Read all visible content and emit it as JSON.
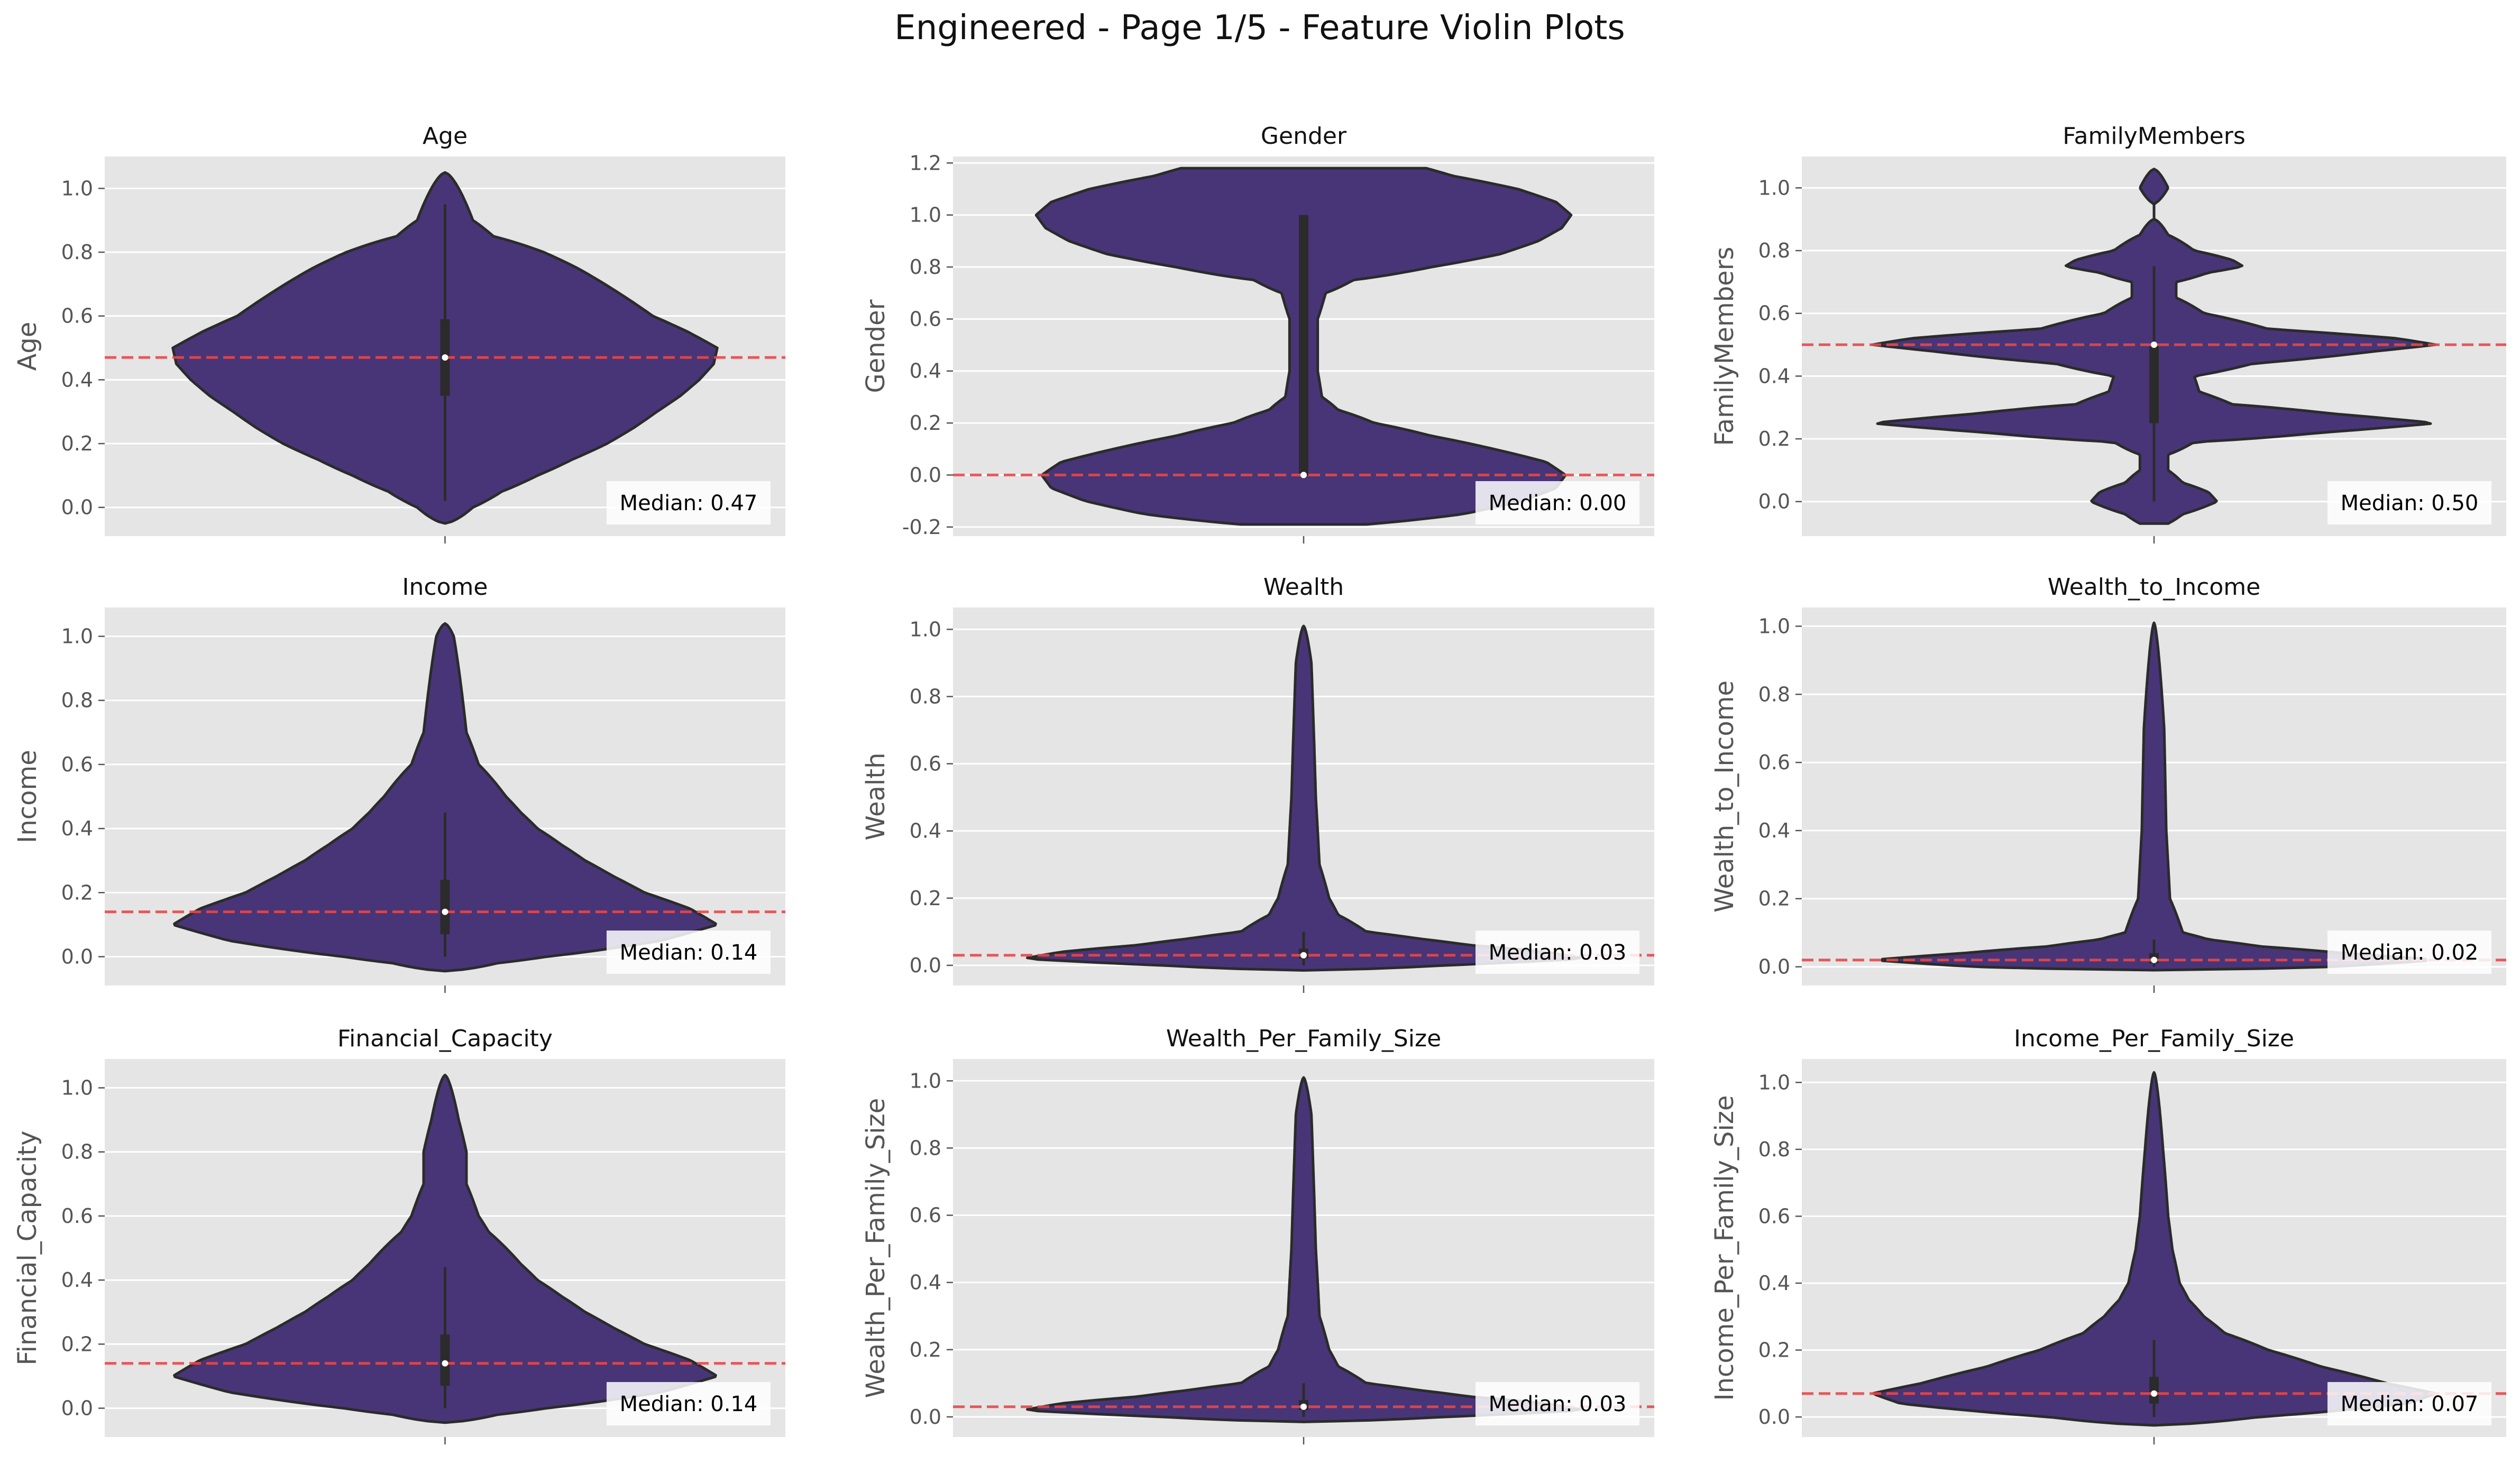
{
  "figure": {
    "title": "Engineered - Page 1/5 - Feature Violin Plots"
  },
  "colors": {
    "panel_bg": "#e5e5e5",
    "grid": "#ffffff",
    "violin_fill": "#483577",
    "violin_edge": "#2b2b2b",
    "median_line": "#e8474a",
    "tick_text": "#555555",
    "label_text": "#555555"
  },
  "chart_data": [
    {
      "type": "violin",
      "title": "Age",
      "ylabel": "Age",
      "ylim": [
        -0.09,
        1.1
      ],
      "yticks": [
        0.0,
        0.2,
        0.4,
        0.6,
        0.8,
        1.0
      ],
      "range": [
        -0.05,
        1.05
      ],
      "median": 0.47,
      "q1": 0.35,
      "q3": 0.59,
      "whisker": [
        0.02,
        0.95
      ],
      "median_label": "Median: 0.47",
      "density": [
        [
          -0.05,
          0.0
        ],
        [
          0.0,
          0.03
        ],
        [
          0.05,
          0.09
        ],
        [
          0.1,
          0.19
        ],
        [
          0.15,
          0.31
        ],
        [
          0.2,
          0.45
        ],
        [
          0.25,
          0.57
        ],
        [
          0.3,
          0.68
        ],
        [
          0.35,
          0.8
        ],
        [
          0.4,
          0.9
        ],
        [
          0.45,
          0.98
        ],
        [
          0.5,
          1.0
        ],
        [
          0.55,
          0.84
        ],
        [
          0.6,
          0.66
        ],
        [
          0.65,
          0.55
        ],
        [
          0.7,
          0.44
        ],
        [
          0.75,
          0.33
        ],
        [
          0.8,
          0.21
        ],
        [
          0.85,
          0.07
        ],
        [
          0.9,
          0.03
        ],
        [
          0.95,
          0.02
        ],
        [
          1.0,
          0.01
        ],
        [
          1.05,
          0.0
        ]
      ]
    },
    {
      "type": "violin",
      "title": "Gender",
      "ylabel": "Gender",
      "ylim": [
        -0.235,
        1.225
      ],
      "yticks": [
        -0.2,
        0.0,
        0.2,
        0.4,
        0.6,
        0.8,
        1.0,
        1.2
      ],
      "range": [
        -0.19,
        1.18
      ],
      "median": 0.0,
      "q1": 0.0,
      "q3": 1.0,
      "whisker": [
        0.0,
        1.0
      ],
      "median_label": "Median: 0.00",
      "density": [
        [
          -0.19,
          0.1
        ],
        [
          -0.15,
          0.42
        ],
        [
          -0.1,
          0.68
        ],
        [
          -0.05,
          0.85
        ],
        [
          0.0,
          0.9
        ],
        [
          0.05,
          0.8
        ],
        [
          0.1,
          0.55
        ],
        [
          0.15,
          0.3
        ],
        [
          0.2,
          0.12
        ],
        [
          0.25,
          0.04
        ],
        [
          0.3,
          0.015
        ],
        [
          0.4,
          0.01
        ],
        [
          0.5,
          0.01
        ],
        [
          0.6,
          0.01
        ],
        [
          0.7,
          0.02
        ],
        [
          0.75,
          0.07
        ],
        [
          0.8,
          0.3
        ],
        [
          0.85,
          0.58
        ],
        [
          0.9,
          0.76
        ],
        [
          0.95,
          0.88
        ],
        [
          1.0,
          0.93
        ],
        [
          1.05,
          0.85
        ],
        [
          1.1,
          0.66
        ],
        [
          1.15,
          0.38
        ],
        [
          1.18,
          0.28
        ]
      ]
    },
    {
      "type": "violin",
      "title": "FamilyMembers",
      "ylabel": "FamilyMembers",
      "ylim": [
        -0.11,
        1.1
      ],
      "yticks": [
        0.0,
        0.2,
        0.4,
        0.6,
        0.8,
        1.0
      ],
      "range": [
        -0.07,
        1.06
      ],
      "median": 0.5,
      "q1": 0.25,
      "q3": 0.5,
      "whisker": [
        0.0,
        0.75
      ],
      "median_label": "Median: 0.50",
      "density": [
        [
          -0.07,
          0.01
        ],
        [
          -0.04,
          0.03
        ],
        [
          0.0,
          0.1
        ],
        [
          0.03,
          0.08
        ],
        [
          0.06,
          0.03
        ],
        [
          0.1,
          0.01
        ],
        [
          0.15,
          0.01
        ],
        [
          0.19,
          0.05
        ],
        [
          0.22,
          0.45
        ],
        [
          0.25,
          1.0
        ],
        [
          0.28,
          0.5
        ],
        [
          0.31,
          0.14
        ],
        [
          0.35,
          0.06
        ],
        [
          0.4,
          0.05
        ],
        [
          0.44,
          0.2
        ],
        [
          0.48,
          0.7
        ],
        [
          0.5,
          1.0
        ],
        [
          0.52,
          0.8
        ],
        [
          0.55,
          0.25
        ],
        [
          0.6,
          0.07
        ],
        [
          0.65,
          0.02
        ],
        [
          0.7,
          0.02
        ],
        [
          0.73,
          0.08
        ],
        [
          0.75,
          0.17
        ],
        [
          0.77,
          0.14
        ],
        [
          0.8,
          0.05
        ],
        [
          0.85,
          0.01
        ],
        [
          0.9,
          0.0
        ],
        [
          0.95,
          0.0
        ],
        [
          1.0,
          0.01
        ],
        [
          1.06,
          0.0
        ]
      ]
    },
    {
      "type": "violin",
      "title": "Income",
      "ylabel": "Income",
      "ylim": [
        -0.09,
        1.09
      ],
      "yticks": [
        0.0,
        0.2,
        0.4,
        0.6,
        0.8,
        1.0
      ],
      "range": [
        -0.045,
        1.04
      ],
      "median": 0.14,
      "q1": 0.07,
      "q3": 0.24,
      "whisker": [
        0.0,
        0.45
      ],
      "median_label": "Median: 0.14",
      "density": [
        [
          -0.045,
          0.0
        ],
        [
          -0.02,
          0.08
        ],
        [
          0.0,
          0.22
        ],
        [
          0.05,
          0.7
        ],
        [
          0.1,
          1.0
        ],
        [
          0.15,
          0.85
        ],
        [
          0.2,
          0.62
        ],
        [
          0.25,
          0.48
        ],
        [
          0.3,
          0.36
        ],
        [
          0.35,
          0.27
        ],
        [
          0.4,
          0.19
        ],
        [
          0.45,
          0.14
        ],
        [
          0.5,
          0.1
        ],
        [
          0.55,
          0.07
        ],
        [
          0.6,
          0.04
        ],
        [
          0.65,
          0.03
        ],
        [
          0.7,
          0.02
        ],
        [
          0.8,
          0.015
        ],
        [
          0.9,
          0.01
        ],
        [
          1.0,
          0.005
        ],
        [
          1.04,
          0.0
        ]
      ]
    },
    {
      "type": "violin",
      "title": "Wealth",
      "ylabel": "Wealth",
      "ylim": [
        -0.06,
        1.065
      ],
      "yticks": [
        0.0,
        0.2,
        0.4,
        0.6,
        0.8,
        1.0
      ],
      "range": [
        -0.015,
        1.01
      ],
      "median": 0.03,
      "q1": 0.02,
      "q3": 0.05,
      "whisker": [
        0.0,
        0.1
      ],
      "median_label": "Median: 0.03",
      "density": [
        [
          -0.015,
          0.0
        ],
        [
          0.0,
          0.35
        ],
        [
          0.02,
          1.0
        ],
        [
          0.04,
          0.8
        ],
        [
          0.06,
          0.45
        ],
        [
          0.08,
          0.25
        ],
        [
          0.1,
          0.1
        ],
        [
          0.15,
          0.04
        ],
        [
          0.2,
          0.025
        ],
        [
          0.3,
          0.012
        ],
        [
          0.5,
          0.008
        ],
        [
          0.7,
          0.006
        ],
        [
          0.9,
          0.004
        ],
        [
          1.01,
          0.0
        ]
      ]
    },
    {
      "type": "violin",
      "title": "Wealth_to_Income",
      "ylabel": "Wealth_to_Income",
      "ylim": [
        -0.055,
        1.055
      ],
      "yticks": [
        0.0,
        0.2,
        0.4,
        0.6,
        0.8,
        1.0
      ],
      "range": [
        -0.01,
        1.01
      ],
      "median": 0.02,
      "q1": 0.01,
      "q3": 0.04,
      "whisker": [
        0.0,
        0.08
      ],
      "median_label": "Median: 0.02",
      "density": [
        [
          -0.01,
          0.0
        ],
        [
          0.0,
          0.5
        ],
        [
          0.02,
          1.0
        ],
        [
          0.04,
          0.55
        ],
        [
          0.06,
          0.22
        ],
        [
          0.08,
          0.08
        ],
        [
          0.1,
          0.03
        ],
        [
          0.2,
          0.012
        ],
        [
          0.4,
          0.008
        ],
        [
          0.7,
          0.006
        ],
        [
          1.01,
          0.0
        ]
      ]
    },
    {
      "type": "violin",
      "title": "Financial_Capacity",
      "ylabel": "Financial_Capacity",
      "ylim": [
        -0.09,
        1.09
      ],
      "yticks": [
        0.0,
        0.2,
        0.4,
        0.6,
        0.8,
        1.0
      ],
      "range": [
        -0.045,
        1.04
      ],
      "median": 0.14,
      "q1": 0.07,
      "q3": 0.23,
      "whisker": [
        0.0,
        0.44
      ],
      "median_label": "Median: 0.14",
      "density": [
        [
          -0.045,
          0.0
        ],
        [
          -0.02,
          0.08
        ],
        [
          0.0,
          0.22
        ],
        [
          0.05,
          0.7
        ],
        [
          0.1,
          1.0
        ],
        [
          0.15,
          0.85
        ],
        [
          0.2,
          0.62
        ],
        [
          0.25,
          0.48
        ],
        [
          0.3,
          0.36
        ],
        [
          0.35,
          0.27
        ],
        [
          0.4,
          0.19
        ],
        [
          0.45,
          0.14
        ],
        [
          0.5,
          0.1
        ],
        [
          0.55,
          0.06
        ],
        [
          0.6,
          0.04
        ],
        [
          0.7,
          0.02
        ],
        [
          0.8,
          0.02
        ],
        [
          0.9,
          0.01
        ],
        [
          1.04,
          0.0
        ]
      ]
    },
    {
      "type": "violin",
      "title": "Wealth_Per_Family_Size",
      "ylabel": "Wealth_Per_Family_Size",
      "ylim": [
        -0.06,
        1.065
      ],
      "yticks": [
        0.0,
        0.2,
        0.4,
        0.6,
        0.8,
        1.0
      ],
      "range": [
        -0.015,
        1.01
      ],
      "median": 0.03,
      "q1": 0.02,
      "q3": 0.05,
      "whisker": [
        0.0,
        0.1
      ],
      "median_label": "Median: 0.03",
      "density": [
        [
          -0.015,
          0.0
        ],
        [
          0.0,
          0.35
        ],
        [
          0.02,
          1.0
        ],
        [
          0.04,
          0.8
        ],
        [
          0.06,
          0.45
        ],
        [
          0.08,
          0.25
        ],
        [
          0.1,
          0.1
        ],
        [
          0.15,
          0.04
        ],
        [
          0.2,
          0.025
        ],
        [
          0.3,
          0.012
        ],
        [
          0.5,
          0.008
        ],
        [
          0.7,
          0.006
        ],
        [
          0.9,
          0.004
        ],
        [
          1.01,
          0.0
        ]
      ]
    },
    {
      "type": "violin",
      "title": "Income_Per_Family_Size",
      "ylabel": "Income_Per_Family_Size",
      "ylim": [
        -0.06,
        1.07
      ],
      "yticks": [
        0.0,
        0.2,
        0.4,
        0.6,
        0.8,
        1.0
      ],
      "range": [
        -0.025,
        1.03
      ],
      "median": 0.07,
      "q1": 0.04,
      "q3": 0.12,
      "whisker": [
        0.0,
        0.23
      ],
      "median_label": "Median: 0.07",
      "density": [
        [
          -0.025,
          0.0
        ],
        [
          0.0,
          0.22
        ],
        [
          0.04,
          0.85
        ],
        [
          0.07,
          1.0
        ],
        [
          0.1,
          0.75
        ],
        [
          0.15,
          0.45
        ],
        [
          0.2,
          0.25
        ],
        [
          0.25,
          0.12
        ],
        [
          0.3,
          0.07
        ],
        [
          0.35,
          0.04
        ],
        [
          0.4,
          0.025
        ],
        [
          0.5,
          0.015
        ],
        [
          0.6,
          0.01
        ],
        [
          0.8,
          0.005
        ],
        [
          1.03,
          0.0
        ]
      ]
    }
  ]
}
